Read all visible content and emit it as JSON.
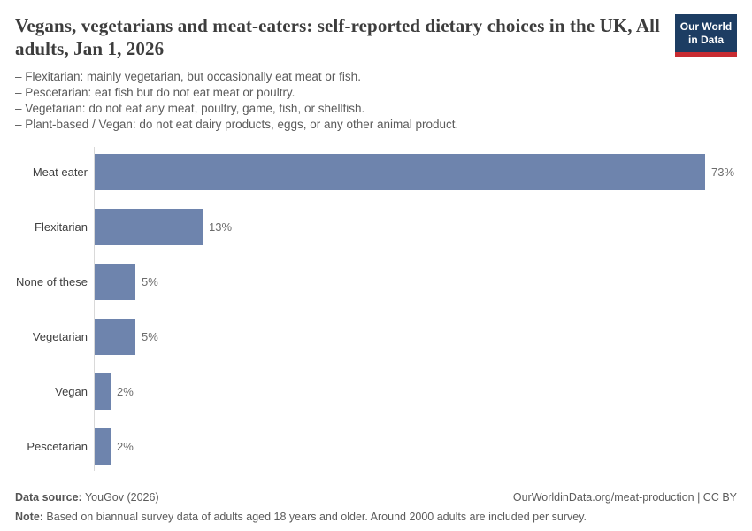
{
  "header": {
    "title": "Vegans, vegetarians and meat-eaters: self-reported dietary choices in the UK, All adults, Jan 1, 2026",
    "definitions": [
      "– Flexitarian: mainly vegetarian, but occasionally eat meat or fish.",
      "– Pescetarian: eat fish but do not eat meat or poultry.",
      "– Vegetarian: do not eat any meat, poultry, game, fish, or shellfish.",
      "– Plant-based / Vegan: do not eat dairy products, eggs, or any other animal product."
    ],
    "logo": {
      "line1": "Our World",
      "line2": "in Data",
      "bg_color": "#1d3d63",
      "stripe_color": "#c82b31"
    }
  },
  "chart_data": {
    "type": "bar",
    "orientation": "horizontal",
    "title": "Vegans, vegetarians and meat-eaters: self-reported dietary choices in the UK, All adults, Jan 1, 2026",
    "categories": [
      "Meat eater",
      "Flexitarian",
      "None of these",
      "Vegetarian",
      "Vegan",
      "Pescetarian"
    ],
    "values": [
      73,
      13,
      5,
      5,
      2,
      2
    ],
    "value_labels": [
      "73%",
      "13%",
      "5%",
      "5%",
      "2%",
      "2%"
    ],
    "unit": "%",
    "bar_color": "#6e84ad",
    "axis_color": "#d9d9d9",
    "xlim": [
      0,
      76.5
    ],
    "grid": false,
    "legend": "none",
    "xlabel": "",
    "ylabel": ""
  },
  "footer": {
    "source_label": "Data source:",
    "source_value": " YouGov (2026)",
    "rights": "OurWorldinData.org/meat-production | CC BY",
    "note_label": "Note:",
    "note_value": " Based on biannual survey data of adults aged 18 years and older. Around 2000 adults are included per survey."
  }
}
